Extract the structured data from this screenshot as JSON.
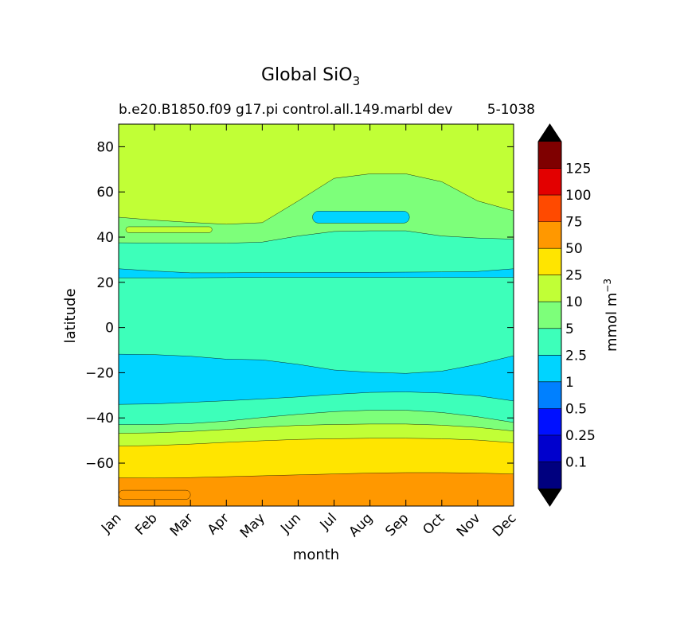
{
  "chart_data": {
    "type": "heatmap",
    "title": "Global SiO",
    "title_subscript": "3",
    "subtitle_left": "b.e20.B1850.f09 g17.pi control.all.149.marbl dev",
    "subtitle_right": "5-1038",
    "xlabel": "month",
    "ylabel": "latitude",
    "x_ticks": [
      "Jan",
      "Feb",
      "Mar",
      "Apr",
      "May",
      "Jun",
      "Jul",
      "Aug",
      "Sep",
      "Oct",
      "Nov",
      "Dec"
    ],
    "ylim": [
      -79,
      90
    ],
    "y_ticks": [
      {
        "value": 80,
        "label": "80"
      },
      {
        "value": 60,
        "label": "60"
      },
      {
        "value": 40,
        "label": "40"
      },
      {
        "value": 20,
        "label": "20"
      },
      {
        "value": 0,
        "label": "0"
      },
      {
        "value": -20,
        "label": "−20"
      },
      {
        "value": -40,
        "label": "−40"
      },
      {
        "value": -60,
        "label": "−60"
      }
    ],
    "colorbar": {
      "label": "mmol m",
      "label_superscript": "−3",
      "levels": [
        "0.1",
        "0.25",
        "0.5",
        "1",
        "2.5",
        "5",
        "10",
        "25",
        "50",
        "75",
        "100",
        "125"
      ],
      "colors": [
        "#00007f",
        "#0000cd",
        "#0010ff",
        "#0080ff",
        "#00d4ff",
        "#3dffba",
        "#7dff7a",
        "#c1ff36",
        "#ffe500",
        "#ff9800",
        "#ff4a00",
        "#e30000",
        "#7f0000"
      ],
      "extend": "both",
      "under_color": "#000000",
      "over_color": "#000000"
    },
    "bands": [
      {
        "level": "50–75",
        "color": "#ff9800",
        "edge_lat": [
          -66.5,
          -66.6,
          -66.4,
          -66.0,
          -65.6,
          -65.2,
          -64.8,
          -64.4,
          -64.2,
          -64.2,
          -64.4,
          -64.8
        ]
      },
      {
        "level": "25–50",
        "color": "#ffe500",
        "edge_lat": [
          -52.5,
          -52.2,
          -51.6,
          -50.8,
          -50.1,
          -49.5,
          -49.2,
          -49.0,
          -49.0,
          -49.2,
          -49.8,
          -51.0
        ]
      },
      {
        "level": "10–25",
        "color": "#c1ff36",
        "edge_lat": [
          -46.8,
          -46.6,
          -46.0,
          -45.1,
          -44.1,
          -43.3,
          -42.9,
          -42.7,
          -42.7,
          -43.2,
          -44.2,
          -45.8
        ]
      },
      {
        "level": "5–10",
        "color": "#7dff7a",
        "edge_lat": [
          -43.0,
          -42.9,
          -42.5,
          -41.4,
          -39.8,
          -38.4,
          -37.2,
          -36.6,
          -36.6,
          -37.6,
          -39.5,
          -42.0
        ]
      },
      {
        "level": "2.5–5",
        "color": "#3dffba",
        "edge_lat": [
          -34.0,
          -33.8,
          -33.1,
          -32.4,
          -31.6,
          -30.7,
          -29.6,
          -28.7,
          -28.5,
          -29.0,
          -30.2,
          -32.5
        ]
      },
      {
        "level": "1–2.5",
        "color": "#00d4ff",
        "edge_lat": [
          -11.8,
          -12.0,
          -12.7,
          -14.0,
          -14.3,
          -16.3,
          -18.8,
          -19.8,
          -20.3,
          -19.3,
          -16.3,
          -12.5
        ]
      },
      {
        "level": "2.5–5",
        "color": "#3dffba",
        "edge_lat": [
          22.0,
          22.0,
          22.0,
          22.1,
          22.2,
          22.2,
          22.2,
          22.2,
          22.2,
          22.2,
          22.2,
          22.2
        ]
      },
      {
        "level": "1–2.5",
        "color": "#00d4ff",
        "edge_lat": [
          26.0,
          25.0,
          24.2,
          24.2,
          24.3,
          24.3,
          24.4,
          24.4,
          24.5,
          24.6,
          24.8,
          26.0
        ]
      },
      {
        "level": "2.5–5",
        "color": "#3dffba",
        "edge_lat": [
          37.5,
          37.4,
          37.3,
          37.3,
          37.8,
          40.5,
          42.5,
          42.8,
          42.8,
          40.5,
          39.6,
          39.1
        ]
      },
      {
        "level": "5–10",
        "color": "#7dff7a",
        "edge_lat": [
          48.8,
          47.5,
          46.5,
          45.7,
          46.4,
          56.0,
          66.0,
          68.0,
          68.0,
          64.5,
          56.0,
          51.6
        ]
      },
      {
        "level": "10–25",
        "color": "#c1ff36",
        "edge_lat": [
          90,
          90,
          90,
          90,
          90,
          90,
          90,
          90,
          90,
          90,
          90,
          90
        ]
      }
    ],
    "patches": [
      {
        "level": "50–75",
        "color": "#ff9800",
        "lat_lo": -76.0,
        "lat_hi": -72.0,
        "month_lo": 0,
        "month_hi": 2.0
      },
      {
        "level": "10–25",
        "color": "#c1ff36",
        "lat_lo": 42.0,
        "lat_hi": 44.6,
        "month_lo": 0.2,
        "month_hi": 2.6
      },
      {
        "level": "1–2.5",
        "color": "#00d4ff",
        "lat_lo": 46.2,
        "lat_hi": 51.5,
        "month_lo": 5.4,
        "month_hi": 8.1
      }
    ]
  }
}
